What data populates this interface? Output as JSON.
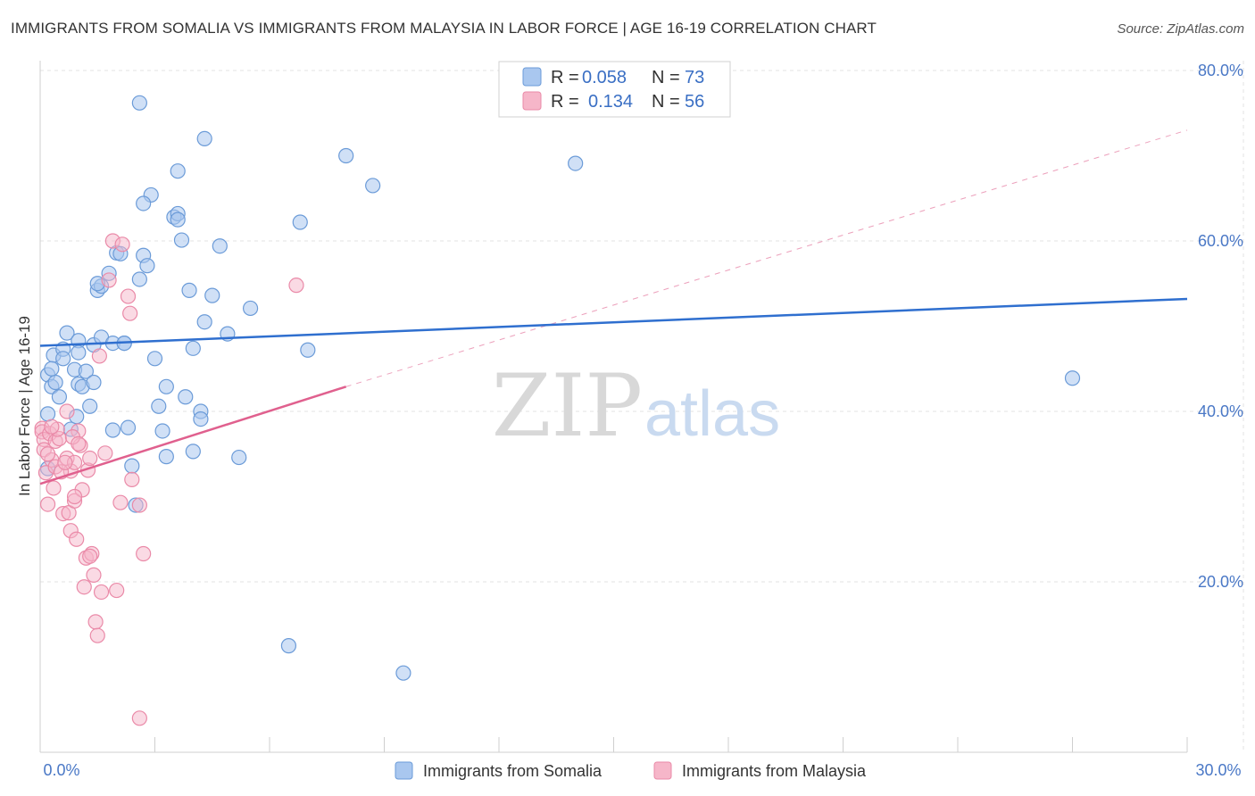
{
  "title": "IMMIGRANTS FROM SOMALIA VS IMMIGRANTS FROM MALAYSIA IN LABOR FORCE | AGE 16-19 CORRELATION CHART",
  "source": "Source: ZipAtlas.com",
  "watermark": {
    "zip": "ZIP",
    "atlas": "atlas"
  },
  "colors": {
    "somalia_fill": "#a9c7ef",
    "somalia_stroke": "#6b9bd8",
    "somalia_line": "#2f6fcf",
    "malaysia_fill": "#f6b6c9",
    "malaysia_stroke": "#ea8aa8",
    "malaysia_line": "#e0608e",
    "grid": "#e3e3e3",
    "axis_text": "#4a78c6"
  },
  "legend": {
    "rows": [
      {
        "r_label": "R =",
        "r_value": "0.058",
        "n_label": "N =",
        "n_value": "73"
      },
      {
        "r_label": "R =",
        "r_value": "0.134",
        "n_label": "N =",
        "n_value": "56"
      }
    ]
  },
  "bottom_legend": [
    "Immigrants from Somalia",
    "Immigrants from Malaysia"
  ],
  "chart_data": {
    "type": "scatter",
    "title": "IMMIGRANTS FROM SOMALIA VS IMMIGRANTS FROM MALAYSIA IN LABOR FORCE | AGE 16-19 CORRELATION CHART",
    "xlabel": "",
    "ylabel": "In Labor Force | Age 16-19",
    "xlim": [
      0,
      30
    ],
    "ylim": [
      0,
      80
    ],
    "x_tick_labels": [
      "0.0%",
      "30.0%"
    ],
    "y_ticks": [
      20,
      40,
      60,
      80
    ],
    "y_tick_labels": [
      "20.0%",
      "40.0%",
      "60.0%",
      "80.0%"
    ],
    "legend_position": "top-center",
    "grid": true,
    "series": [
      {
        "name": "Immigrants from Somalia",
        "R": 0.058,
        "N": 73,
        "trend": {
          "x": [
            0,
            30
          ],
          "y": [
            47.7,
            53.2
          ],
          "style": "solid"
        },
        "points": [
          [
            0.2,
            44.3
          ],
          [
            0.2,
            39.7
          ],
          [
            0.2,
            33.3
          ],
          [
            0.3,
            42.9
          ],
          [
            0.35,
            46.6
          ],
          [
            0.4,
            43.4
          ],
          [
            0.5,
            41.7
          ],
          [
            0.6,
            47.3
          ],
          [
            0.6,
            46.2
          ],
          [
            0.7,
            49.2
          ],
          [
            0.8,
            37.9
          ],
          [
            0.9,
            44.9
          ],
          [
            0.95,
            39.4
          ],
          [
            1.0,
            48.3
          ],
          [
            1.0,
            46.9
          ],
          [
            1.0,
            43.2
          ],
          [
            1.1,
            42.9
          ],
          [
            1.2,
            44.7
          ],
          [
            1.3,
            40.6
          ],
          [
            1.4,
            47.8
          ],
          [
            1.4,
            43.4
          ],
          [
            1.5,
            54.2
          ],
          [
            1.6,
            54.7
          ],
          [
            1.6,
            48.7
          ],
          [
            1.9,
            48.0
          ],
          [
            1.9,
            37.8
          ],
          [
            2.0,
            58.6
          ],
          [
            2.2,
            48.0
          ],
          [
            2.3,
            38.1
          ],
          [
            2.4,
            33.6
          ],
          [
            2.5,
            29.0
          ],
          [
            2.6,
            55.5
          ],
          [
            2.7,
            58.3
          ],
          [
            2.8,
            57.1
          ],
          [
            3.0,
            46.2
          ],
          [
            3.1,
            40.6
          ],
          [
            3.2,
            37.7
          ],
          [
            3.3,
            34.7
          ],
          [
            3.3,
            42.9
          ],
          [
            3.5,
            62.8
          ],
          [
            3.6,
            63.2
          ],
          [
            3.6,
            62.5
          ],
          [
            3.8,
            41.7
          ],
          [
            3.9,
            54.2
          ],
          [
            4.0,
            47.4
          ],
          [
            4.0,
            35.3
          ],
          [
            4.2,
            40.0
          ],
          [
            4.2,
            39.1
          ],
          [
            4.5,
            53.6
          ],
          [
            4.7,
            59.4
          ],
          [
            4.9,
            49.1
          ],
          [
            5.2,
            34.6
          ],
          [
            5.5,
            52.1
          ],
          [
            6.5,
            12.5
          ],
          [
            6.8,
            62.2
          ],
          [
            7.0,
            47.2
          ],
          [
            8.0,
            70.0
          ],
          [
            8.7,
            66.5
          ],
          [
            9.5,
            9.3
          ],
          [
            14.0,
            69.1
          ],
          [
            27.0,
            43.9
          ],
          [
            3.6,
            68.2
          ],
          [
            3.7,
            60.1
          ],
          [
            2.9,
            65.4
          ],
          [
            2.7,
            64.4
          ],
          [
            2.6,
            76.2
          ],
          [
            4.3,
            72.0
          ],
          [
            1.8,
            56.2
          ],
          [
            2.1,
            58.5
          ],
          [
            1.5,
            55.0
          ],
          [
            4.3,
            50.5
          ],
          [
            2.2,
            48.0
          ],
          [
            0.3,
            45.0
          ]
        ]
      },
      {
        "name": "Immigrants from Malaysia",
        "R": 0.134,
        "N": 56,
        "trend": {
          "x": [
            0,
            8.0
          ],
          "y": [
            31.5,
            42.9
          ],
          "style": "solid"
        },
        "dashed_extension": {
          "x": [
            8.0,
            30
          ],
          "y": [
            42.9,
            73.0
          ]
        },
        "points": [
          [
            0.05,
            38.0
          ],
          [
            0.05,
            37.6
          ],
          [
            0.1,
            36.7
          ],
          [
            0.1,
            35.5
          ],
          [
            0.15,
            32.8
          ],
          [
            0.2,
            29.1
          ],
          [
            0.25,
            37.4
          ],
          [
            0.3,
            34.3
          ],
          [
            0.35,
            31.0
          ],
          [
            0.4,
            33.5
          ],
          [
            0.4,
            36.5
          ],
          [
            0.5,
            36.8
          ],
          [
            0.6,
            28.0
          ],
          [
            0.7,
            34.5
          ],
          [
            0.7,
            40.0
          ],
          [
            0.75,
            28.1
          ],
          [
            0.8,
            33.0
          ],
          [
            0.8,
            26.0
          ],
          [
            0.9,
            34.0
          ],
          [
            0.9,
            29.5
          ],
          [
            0.95,
            25.0
          ],
          [
            1.0,
            37.7
          ],
          [
            1.05,
            36.0
          ],
          [
            1.1,
            30.8
          ],
          [
            1.15,
            19.4
          ],
          [
            1.2,
            22.8
          ],
          [
            1.25,
            33.1
          ],
          [
            1.3,
            34.5
          ],
          [
            1.35,
            23.3
          ],
          [
            1.4,
            20.8
          ],
          [
            1.45,
            15.3
          ],
          [
            1.5,
            13.7
          ],
          [
            1.55,
            46.5
          ],
          [
            1.6,
            18.8
          ],
          [
            1.7,
            35.1
          ],
          [
            1.8,
            55.4
          ],
          [
            1.9,
            60.0
          ],
          [
            2.0,
            19.0
          ],
          [
            2.1,
            29.3
          ],
          [
            2.15,
            59.6
          ],
          [
            2.3,
            53.5
          ],
          [
            2.35,
            51.5
          ],
          [
            2.4,
            32.0
          ],
          [
            2.6,
            29.0
          ],
          [
            2.7,
            23.3
          ],
          [
            2.6,
            4.0
          ],
          [
            6.7,
            54.8
          ],
          [
            0.45,
            37.9
          ],
          [
            0.55,
            32.9
          ],
          [
            0.65,
            34.0
          ],
          [
            0.85,
            37.0
          ],
          [
            1.0,
            36.2
          ],
          [
            1.3,
            23.0
          ],
          [
            0.2,
            35.0
          ],
          [
            0.3,
            38.2
          ],
          [
            0.9,
            30.0
          ]
        ]
      }
    ]
  }
}
